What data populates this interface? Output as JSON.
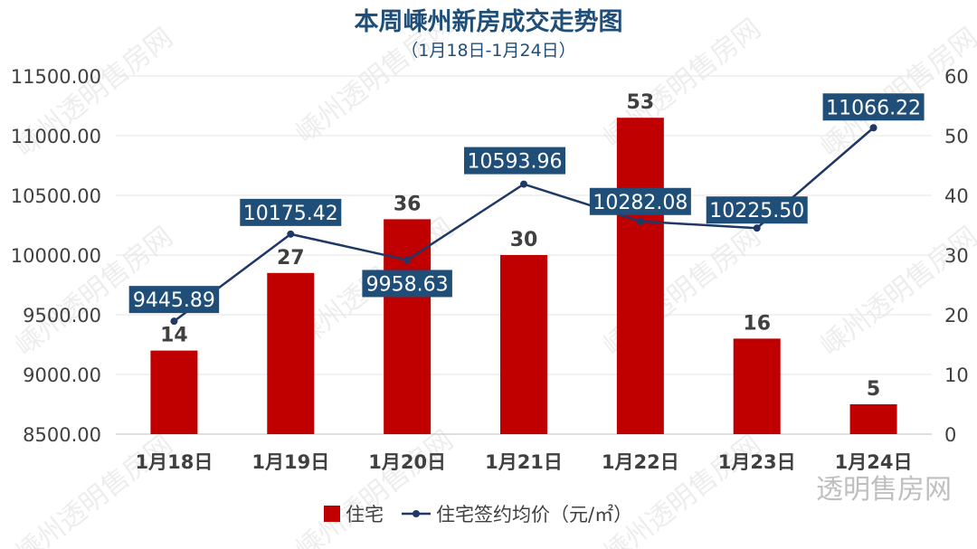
{
  "watermark": "嵊州透明售房网",
  "corner_watermark": "透明售房网",
  "chart_data": {
    "type": "bar",
    "title": "本周嵊州新房成交走势图",
    "subtitle": "（1月18日-1月24日）",
    "categories": [
      "1月18日",
      "1月19日",
      "1月20日",
      "1月21日",
      "1月22日",
      "1月23日",
      "1月24日"
    ],
    "series": [
      {
        "name": "住宅",
        "type": "bar",
        "axis": "right",
        "color": "#c00000",
        "values": [
          14,
          27,
          36,
          30,
          53,
          16,
          5
        ],
        "labels": [
          "14",
          "27",
          "36",
          "30",
          "53",
          "16",
          "5"
        ]
      },
      {
        "name": "住宅签约均价（元/㎡）",
        "type": "line",
        "axis": "left",
        "color": "#1f3864",
        "label_bg": "#1f4e79",
        "values": [
          9445.89,
          10175.42,
          9958.63,
          10593.96,
          10282.08,
          10225.5,
          11066.22
        ],
        "labels": [
          "9445.89",
          "10175.42",
          "9958.63",
          "10593.96",
          "10282.08",
          "10225.50",
          "11066.22"
        ]
      }
    ],
    "left_axis": {
      "ylim": [
        8500,
        11500
      ],
      "ticks": [
        "8500.00",
        "9000.00",
        "9500.00",
        "10000.00",
        "10500.00",
        "11000.00",
        "11500.00"
      ]
    },
    "right_axis": {
      "ylim": [
        0,
        60
      ],
      "ticks": [
        "0",
        "10",
        "20",
        "30",
        "40",
        "50",
        "60"
      ]
    },
    "grid": true,
    "legend": "bottom"
  }
}
